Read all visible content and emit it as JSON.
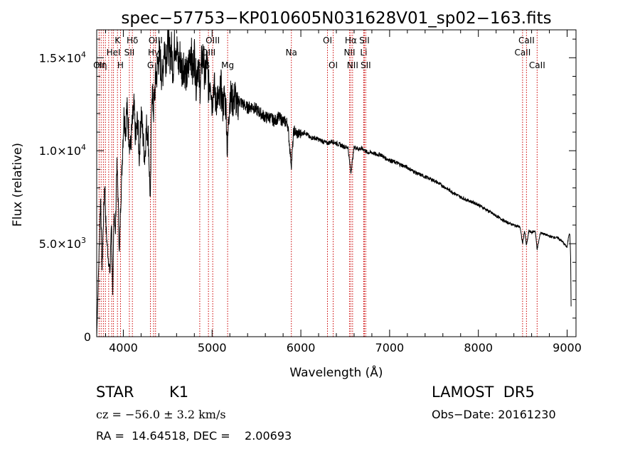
{
  "chart_data": {
    "type": "line",
    "title": "spec−57753−KP010605N031628V01_sp02−163.fits",
    "xlabel": "Wavelength (Å)",
    "ylabel": "Flux (relative)",
    "xlim": [
      3700,
      9100
    ],
    "ylim": [
      0,
      16500
    ],
    "x_ticks": [
      {
        "v": 4000,
        "label": "4000"
      },
      {
        "v": 5000,
        "label": "5000"
      },
      {
        "v": 6000,
        "label": "6000"
      },
      {
        "v": 7000,
        "label": "7000"
      },
      {
        "v": 8000,
        "label": "8000"
      },
      {
        "v": 9000,
        "label": "9000"
      }
    ],
    "y_ticks": [
      {
        "v": 0,
        "mant": "0",
        "exp": ""
      },
      {
        "v": 5000,
        "mant": "5.0×10",
        "exp": "3"
      },
      {
        "v": 10000,
        "mant": "1.0×10",
        "exp": "4"
      },
      {
        "v": 15000,
        "mant": "1.5×10",
        "exp": "4"
      }
    ],
    "grid": false,
    "line_color": "#000000",
    "marker_color": "#cc0000",
    "series": [
      {
        "x": [
          3700,
          3725,
          3745,
          3760,
          3775,
          3790,
          3805,
          3820,
          3835,
          3850,
          3865,
          3880,
          3895,
          3910,
          3925,
          3940,
          3955,
          3968,
          3980,
          3995,
          4010,
          4025,
          4040,
          4060,
          4080,
          4101,
          4120,
          4140,
          4160,
          4180,
          4200,
          4220,
          4240,
          4260,
          4280,
          4305,
          4320,
          4340,
          4360,
          4380,
          4400,
          4420,
          4440,
          4460,
          4480,
          4500,
          4520,
          4540,
          4560,
          4580,
          4600,
          4620,
          4640,
          4660,
          4680,
          4700,
          4720,
          4740,
          4760,
          4780,
          4800,
          4820,
          4840,
          4861,
          4880,
          4900,
          4920,
          4940,
          4960,
          4980,
          5000,
          5020,
          5040,
          5060,
          5080,
          5100,
          5120,
          5140,
          5160,
          5172,
          5184,
          5200,
          5220,
          5240,
          5260,
          5280,
          5300,
          5350,
          5400,
          5450,
          5500,
          5550,
          5600,
          5650,
          5700,
          5750,
          5800,
          5850,
          5893,
          5920,
          5960,
          6000,
          6050,
          6100,
          6150,
          6200,
          6250,
          6300,
          6350,
          6400,
          6450,
          6500,
          6530,
          6563,
          6600,
          6650,
          6700,
          6750,
          6800,
          6850,
          6900,
          6950,
          7000,
          7100,
          7200,
          7300,
          7400,
          7500,
          7600,
          7700,
          7800,
          7900,
          8000,
          8100,
          8200,
          8300,
          8400,
          8470,
          8498,
          8520,
          8542,
          8570,
          8600,
          8640,
          8662,
          8700,
          8800,
          8900,
          8950,
          9000,
          9020,
          9030,
          9040,
          9045
        ],
        "y": [
          0,
          4200,
          7600,
          3600,
          6100,
          8400,
          5800,
          4800,
          4000,
          3400,
          6400,
          2100,
          7000,
          5400,
          9300,
          7700,
          4300,
          6900,
          8300,
          10600,
          12100,
          11100,
          12300,
          11000,
          10100,
          11400,
          12300,
          10500,
          11700,
          9600,
          12200,
          10800,
          9600,
          11300,
          10900,
          7100,
          13500,
          12100,
          13700,
          14300,
          15200,
          14600,
          13800,
          15800,
          15000,
          16200,
          15100,
          15500,
          14400,
          15900,
          15700,
          14500,
          15100,
          14300,
          14800,
          14200,
          13900,
          14800,
          15600,
          14100,
          15300,
          13600,
          14900,
          13300,
          14600,
          15200,
          13800,
          14900,
          13300,
          14100,
          12500,
          13700,
          12600,
          12900,
          12500,
          13500,
          12300,
          13000,
          12100,
          9800,
          11500,
          13000,
          12800,
          12600,
          13100,
          12200,
          12700,
          12500,
          12300,
          12400,
          12200,
          12000,
          11800,
          11800,
          11600,
          11800,
          11600,
          11500,
          9200,
          11100,
          10900,
          10900,
          11000,
          10700,
          10700,
          10600,
          10500,
          10400,
          10500,
          10400,
          10300,
          10200,
          10200,
          8800,
          10200,
          10100,
          10100,
          9900,
          9900,
          9800,
          9800,
          9600,
          9500,
          9300,
          9100,
          8800,
          8600,
          8400,
          8100,
          7800,
          7500,
          7300,
          7100,
          6800,
          6500,
          6200,
          6000,
          5900,
          5000,
          5700,
          4900,
          5700,
          5600,
          5700,
          4700,
          5600,
          5400,
          5300,
          5100,
          4800,
          5500,
          5600,
          4200,
          1500
        ]
      }
    ],
    "lines": [
      {
        "wl": 3727,
        "label": "OII",
        "row": 2
      },
      {
        "wl": 3750,
        "label": "Hη",
        "row": 2
      },
      {
        "wl": 3775,
        "label": "",
        "row": 0
      },
      {
        "wl": 3798,
        "label": "",
        "row": 0
      },
      {
        "wl": 3835,
        "label": "",
        "row": 0
      },
      {
        "wl": 3869,
        "label": "",
        "row": 0
      },
      {
        "wl": 3889,
        "label": "HeI",
        "row": 1
      },
      {
        "wl": 3934,
        "label": "K",
        "row": 0
      },
      {
        "wl": 3968,
        "label": "H",
        "row": 2
      },
      {
        "wl": 4068,
        "label": "SII",
        "row": 1
      },
      {
        "wl": 4102,
        "label": "Hδ",
        "row": 0
      },
      {
        "wl": 4305,
        "label": "G",
        "row": 2
      },
      {
        "wl": 4341,
        "label": "Hγ",
        "row": 1
      },
      {
        "wl": 4363,
        "label": "OIII",
        "row": 0
      },
      {
        "wl": 4861,
        "label": "",
        "row": 0
      },
      {
        "wl": 4959,
        "label": "OIII",
        "row": 1
      },
      {
        "wl": 5007,
        "label": "OIII",
        "row": 0
      },
      {
        "wl": 5175,
        "label": "Mg",
        "row": 2
      },
      {
        "wl": 5893,
        "label": "Na",
        "row": 1
      },
      {
        "wl": 6300,
        "label": "OI",
        "row": 0
      },
      {
        "wl": 6364,
        "label": "OI",
        "row": 2
      },
      {
        "wl": 6548,
        "label": "NII",
        "row": 1
      },
      {
        "wl": 6563,
        "label": "Hα",
        "row": 0
      },
      {
        "wl": 6583,
        "label": "NII",
        "row": 2
      },
      {
        "wl": 6708,
        "label": "Li",
        "row": 1
      },
      {
        "wl": 6716,
        "label": "SII",
        "row": 0
      },
      {
        "wl": 6731,
        "label": "SII",
        "row": 2
      },
      {
        "wl": 8498,
        "label": "CaII",
        "row": 1
      },
      {
        "wl": 8542,
        "label": "CaII",
        "row": 0
      },
      {
        "wl": 8662,
        "label": "CaII",
        "row": 2
      }
    ],
    "hbeta_label": "Hβ"
  },
  "info": {
    "object_class": "STAR",
    "subclass": "K1",
    "survey": "LAMOST  DR5",
    "redshift": "cz = −56.0 ± 3.2 km/s",
    "obs_date": "Obs−Date: 20161230",
    "coords": "RA =  14.64518, DEC =    2.00693"
  }
}
